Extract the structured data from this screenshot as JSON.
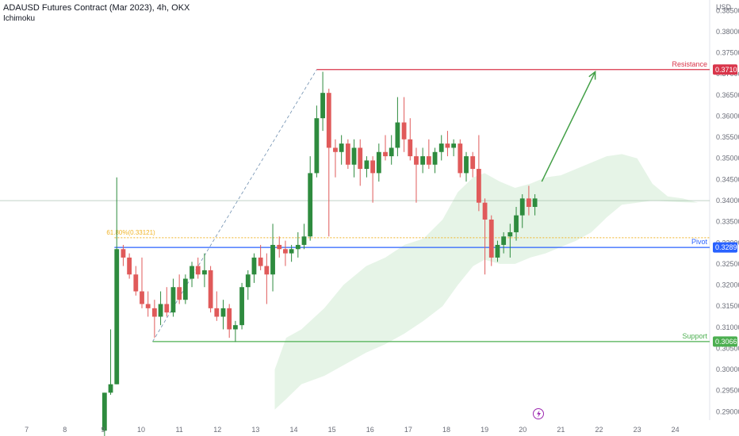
{
  "header": {
    "title": "ADAUSD Futures Contract (Mar 2023), 4h, OKX",
    "indicator": "Ichimoku"
  },
  "axis": {
    "currency": "USD"
  },
  "colors": {
    "bull": "#2e8b3e",
    "bear": "#e05a5a",
    "resistance": "#d9354a",
    "pivot": "#2962ff",
    "support": "#4caf50",
    "fib": "#f0b429",
    "cloud": "#c8e6c9",
    "arrow": "#43a047",
    "trend": "#6f8fb0"
  },
  "chart_data": {
    "type": "candlestick",
    "ylim": [
      0.288,
      0.3875
    ],
    "y_ticks": [
      0.29,
      0.295,
      0.3,
      0.305,
      0.31,
      0.315,
      0.32,
      0.325,
      0.33,
      0.335,
      0.34,
      0.345,
      0.35,
      0.355,
      0.36,
      0.365,
      0.37,
      0.375,
      0.38,
      0.385
    ],
    "y_tick_labels": [
      "0.29000",
      "0.29500",
      "0.30000",
      "0.30500",
      "0.31000",
      "0.31500",
      "0.32000",
      "0.32500",
      "0.33000",
      "0.33500",
      "0.34000",
      "0.34500",
      "0.35000",
      "0.35500",
      "0.36000",
      "0.36500",
      "0.37000",
      "0.37500",
      "0.38000",
      "0.38500"
    ],
    "xlim": [
      6.3,
      24.9
    ],
    "x_ticks": [
      7,
      8,
      9,
      10,
      11,
      12,
      13,
      14,
      15,
      16,
      17,
      18,
      19,
      20,
      21,
      22,
      23,
      24
    ],
    "x_tick_labels": [
      "7",
      "8",
      "9",
      "10",
      "11",
      "12",
      "13",
      "14",
      "15",
      "16",
      "17",
      "18",
      "19",
      "20",
      "21",
      "22",
      "23",
      "24"
    ],
    "candles": [
      {
        "x": 9.04,
        "o": 0.2855,
        "h": 0.2945,
        "l": 0.283,
        "c": 0.2945
      },
      {
        "x": 9.2,
        "o": 0.2945,
        "h": 0.3095,
        "l": 0.294,
        "c": 0.2965
      },
      {
        "x": 9.36,
        "o": 0.2965,
        "h": 0.3455,
        "l": 0.2965,
        "c": 0.3285
      },
      {
        "x": 9.53,
        "o": 0.3285,
        "h": 0.3295,
        "l": 0.3245,
        "c": 0.3265
      },
      {
        "x": 9.69,
        "o": 0.3265,
        "h": 0.3275,
        "l": 0.3215,
        "c": 0.3225
      },
      {
        "x": 9.86,
        "o": 0.3225,
        "h": 0.3245,
        "l": 0.3175,
        "c": 0.3185
      },
      {
        "x": 10.02,
        "o": 0.3185,
        "h": 0.3265,
        "l": 0.3145,
        "c": 0.3155
      },
      {
        "x": 10.18,
        "o": 0.3155,
        "h": 0.3185,
        "l": 0.3125,
        "c": 0.3145
      },
      {
        "x": 10.35,
        "o": 0.3145,
        "h": 0.3165,
        "l": 0.3075,
        "c": 0.3125
      },
      {
        "x": 10.51,
        "o": 0.3125,
        "h": 0.3185,
        "l": 0.3105,
        "c": 0.3155
      },
      {
        "x": 10.67,
        "o": 0.3155,
        "h": 0.3195,
        "l": 0.3125,
        "c": 0.3135
      },
      {
        "x": 10.84,
        "o": 0.3135,
        "h": 0.3215,
        "l": 0.3125,
        "c": 0.3195
      },
      {
        "x": 11,
        "o": 0.3195,
        "h": 0.3225,
        "l": 0.3155,
        "c": 0.3165
      },
      {
        "x": 11.16,
        "o": 0.3165,
        "h": 0.3225,
        "l": 0.3155,
        "c": 0.3215
      },
      {
        "x": 11.33,
        "o": 0.3215,
        "h": 0.3255,
        "l": 0.3195,
        "c": 0.3245
      },
      {
        "x": 11.49,
        "o": 0.3245,
        "h": 0.3265,
        "l": 0.3215,
        "c": 0.3225
      },
      {
        "x": 11.66,
        "o": 0.3225,
        "h": 0.3275,
        "l": 0.3195,
        "c": 0.3235
      },
      {
        "x": 11.82,
        "o": 0.3235,
        "h": 0.3245,
        "l": 0.3135,
        "c": 0.3145
      },
      {
        "x": 11.98,
        "o": 0.3145,
        "h": 0.3185,
        "l": 0.3115,
        "c": 0.3125
      },
      {
        "x": 12.15,
        "o": 0.3125,
        "h": 0.3165,
        "l": 0.3095,
        "c": 0.3145
      },
      {
        "x": 12.31,
        "o": 0.3145,
        "h": 0.3155,
        "l": 0.3075,
        "c": 0.3095
      },
      {
        "x": 12.47,
        "o": 0.3095,
        "h": 0.3115,
        "l": 0.3065,
        "c": 0.3105
      },
      {
        "x": 12.64,
        "o": 0.3105,
        "h": 0.3205,
        "l": 0.3095,
        "c": 0.3195
      },
      {
        "x": 12.8,
        "o": 0.3195,
        "h": 0.3235,
        "l": 0.3165,
        "c": 0.3225
      },
      {
        "x": 12.96,
        "o": 0.3225,
        "h": 0.3275,
        "l": 0.3205,
        "c": 0.3265
      },
      {
        "x": 13.13,
        "o": 0.3265,
        "h": 0.3295,
        "l": 0.3235,
        "c": 0.3245
      },
      {
        "x": 13.29,
        "o": 0.3245,
        "h": 0.3275,
        "l": 0.3155,
        "c": 0.3225
      },
      {
        "x": 13.45,
        "o": 0.3225,
        "h": 0.3345,
        "l": 0.3185,
        "c": 0.3295
      },
      {
        "x": 13.62,
        "o": 0.3295,
        "h": 0.3315,
        "l": 0.3265,
        "c": 0.3285
      },
      {
        "x": 13.78,
        "o": 0.3285,
        "h": 0.3305,
        "l": 0.3245,
        "c": 0.3275
      },
      {
        "x": 13.94,
        "o": 0.3275,
        "h": 0.3295,
        "l": 0.3255,
        "c": 0.3285
      },
      {
        "x": 14.11,
        "o": 0.3285,
        "h": 0.3325,
        "l": 0.3265,
        "c": 0.3295
      },
      {
        "x": 14.27,
        "o": 0.3295,
        "h": 0.3345,
        "l": 0.3285,
        "c": 0.3315
      },
      {
        "x": 14.43,
        "o": 0.3315,
        "h": 0.3505,
        "l": 0.3305,
        "c": 0.3465
      },
      {
        "x": 14.6,
        "o": 0.3465,
        "h": 0.3625,
        "l": 0.3455,
        "c": 0.3595
      },
      {
        "x": 14.76,
        "o": 0.3595,
        "h": 0.3705,
        "l": 0.3565,
        "c": 0.3655
      },
      {
        "x": 14.92,
        "o": 0.3655,
        "h": 0.3665,
        "l": 0.3315,
        "c": 0.3525
      },
      {
        "x": 15.09,
        "o": 0.3525,
        "h": 0.3545,
        "l": 0.3455,
        "c": 0.3515
      },
      {
        "x": 15.25,
        "o": 0.3515,
        "h": 0.3555,
        "l": 0.3485,
        "c": 0.3535
      },
      {
        "x": 15.42,
        "o": 0.3535,
        "h": 0.3545,
        "l": 0.3475,
        "c": 0.3485
      },
      {
        "x": 15.58,
        "o": 0.3485,
        "h": 0.3545,
        "l": 0.3455,
        "c": 0.3525
      },
      {
        "x": 15.74,
        "o": 0.3525,
        "h": 0.3545,
        "l": 0.3435,
        "c": 0.3475
      },
      {
        "x": 15.91,
        "o": 0.3475,
        "h": 0.3505,
        "l": 0.3455,
        "c": 0.3495
      },
      {
        "x": 16.07,
        "o": 0.3495,
        "h": 0.3505,
        "l": 0.3395,
        "c": 0.3465
      },
      {
        "x": 16.23,
        "o": 0.3465,
        "h": 0.3535,
        "l": 0.3445,
        "c": 0.3515
      },
      {
        "x": 16.4,
        "o": 0.3515,
        "h": 0.3555,
        "l": 0.3495,
        "c": 0.3505
      },
      {
        "x": 16.56,
        "o": 0.3505,
        "h": 0.3555,
        "l": 0.3485,
        "c": 0.3525
      },
      {
        "x": 16.72,
        "o": 0.3525,
        "h": 0.3645,
        "l": 0.3505,
        "c": 0.3585
      },
      {
        "x": 16.89,
        "o": 0.3585,
        "h": 0.3645,
        "l": 0.3515,
        "c": 0.3545
      },
      {
        "x": 17.05,
        "o": 0.3545,
        "h": 0.3595,
        "l": 0.3495,
        "c": 0.3505
      },
      {
        "x": 17.21,
        "o": 0.3505,
        "h": 0.3525,
        "l": 0.3395,
        "c": 0.3485
      },
      {
        "x": 17.38,
        "o": 0.3485,
        "h": 0.3525,
        "l": 0.3465,
        "c": 0.3505
      },
      {
        "x": 17.54,
        "o": 0.3505,
        "h": 0.3545,
        "l": 0.3475,
        "c": 0.3485
      },
      {
        "x": 17.7,
        "o": 0.3485,
        "h": 0.3525,
        "l": 0.3465,
        "c": 0.3515
      },
      {
        "x": 17.87,
        "o": 0.3515,
        "h": 0.3555,
        "l": 0.3495,
        "c": 0.3535
      },
      {
        "x": 18.03,
        "o": 0.3535,
        "h": 0.3565,
        "l": 0.3505,
        "c": 0.3525
      },
      {
        "x": 18.19,
        "o": 0.3525,
        "h": 0.3545,
        "l": 0.3505,
        "c": 0.3535
      },
      {
        "x": 18.36,
        "o": 0.3535,
        "h": 0.3545,
        "l": 0.3455,
        "c": 0.3465
      },
      {
        "x": 18.52,
        "o": 0.3465,
        "h": 0.3515,
        "l": 0.3445,
        "c": 0.3505
      },
      {
        "x": 18.69,
        "o": 0.3505,
        "h": 0.3515,
        "l": 0.3455,
        "c": 0.3475
      },
      {
        "x": 18.85,
        "o": 0.3475,
        "h": 0.3555,
        "l": 0.3375,
        "c": 0.3395
      },
      {
        "x": 19.01,
        "o": 0.3395,
        "h": 0.3405,
        "l": 0.3225,
        "c": 0.3355
      },
      {
        "x": 19.18,
        "o": 0.3355,
        "h": 0.3365,
        "l": 0.3245,
        "c": 0.3265
      },
      {
        "x": 19.34,
        "o": 0.3265,
        "h": 0.3305,
        "l": 0.3255,
        "c": 0.3295
      },
      {
        "x": 19.5,
        "o": 0.3295,
        "h": 0.3325,
        "l": 0.3275,
        "c": 0.3315
      },
      {
        "x": 19.67,
        "o": 0.3315,
        "h": 0.3345,
        "l": 0.3265,
        "c": 0.3325
      },
      {
        "x": 19.83,
        "o": 0.3325,
        "h": 0.3385,
        "l": 0.3305,
        "c": 0.3365
      },
      {
        "x": 19.99,
        "o": 0.3365,
        "h": 0.3415,
        "l": 0.3335,
        "c": 0.3405
      },
      {
        "x": 20.16,
        "o": 0.3405,
        "h": 0.3435,
        "l": 0.3365,
        "c": 0.3385
      },
      {
        "x": 20.32,
        "o": 0.3385,
        "h": 0.3415,
        "l": 0.3365,
        "c": 0.3405
      }
    ],
    "ichimoku_cloud": {
      "x": [
        13.5,
        13.8,
        14.2,
        14.8,
        15.3,
        15.9,
        16.4,
        16.9,
        17.4,
        17.9,
        18.3,
        18.7,
        19.0,
        19.4,
        19.8,
        20.2,
        20.6,
        21.0,
        21.4,
        21.8,
        22.2,
        22.6,
        23.0,
        23.4,
        23.8,
        24.2,
        24.6
      ],
      "upper": [
        0.3,
        0.3075,
        0.3095,
        0.3145,
        0.32,
        0.3245,
        0.3265,
        0.3295,
        0.331,
        0.3355,
        0.342,
        0.3455,
        0.3465,
        0.3445,
        0.343,
        0.344,
        0.3455,
        0.346,
        0.3475,
        0.349,
        0.3505,
        0.351,
        0.35,
        0.344,
        0.341,
        0.3405,
        0.3395
      ],
      "lower": [
        0.2905,
        0.293,
        0.2965,
        0.2985,
        0.301,
        0.304,
        0.306,
        0.3085,
        0.3115,
        0.315,
        0.32,
        0.3245,
        0.326,
        0.325,
        0.325,
        0.3265,
        0.3275,
        0.329,
        0.3305,
        0.3325,
        0.336,
        0.339,
        0.3395,
        0.34,
        0.3398,
        0.3396,
        0.3395
      ]
    },
    "levels": [
      {
        "name": "Resistance",
        "value": 0.37102,
        "label": "0.37102",
        "x_start": 14.6
      },
      {
        "name": "Pivot",
        "value": 0.3289,
        "label": "0.32890",
        "x_start": 9.3
      },
      {
        "name": "Support",
        "value": 0.30661,
        "label": "0.30661",
        "x_start": 10.3
      }
    ],
    "fib_level": {
      "label": "61.80%(0.33121)",
      "value": 0.33121,
      "x_start": 9.3
    },
    "current_price_line": 0.34,
    "trend_line": {
      "x1": 10.3,
      "y1": 0.30661,
      "x2": 14.6,
      "y2": 0.37102
    },
    "projection_arrow": {
      "x1": 20.5,
      "y1": 0.3445,
      "x2": 21.9,
      "y2": 0.3705
    }
  }
}
